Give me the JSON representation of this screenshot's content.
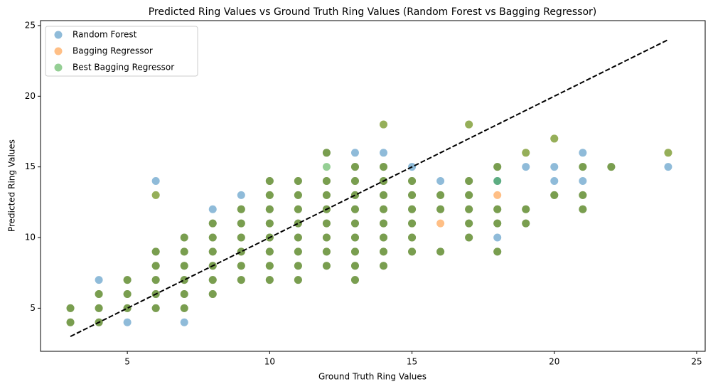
{
  "chart_data": {
    "type": "scatter",
    "title": "Predicted Ring Values vs Ground Truth Ring Values (Random Forest vs Bagging Regressor)",
    "x_label": "Ground Truth Ring Values",
    "y_label": "Predicted Ring Values",
    "xlim": [
      1.95,
      25.3
    ],
    "ylim": [
      1.95,
      25.35
    ],
    "xticks": [
      5,
      10,
      15,
      20,
      25
    ],
    "yticks": [
      5,
      10,
      15,
      20,
      25
    ],
    "grid": false,
    "legend": "upper-left",
    "series": [
      {
        "name": "Random Forest",
        "color": "#1f77b4",
        "x": [
          3,
          3,
          4,
          4,
          4,
          5,
          5,
          5,
          6,
          6,
          6,
          6,
          6,
          7,
          7,
          7,
          7,
          7,
          7,
          8,
          8,
          8,
          8,
          8,
          8,
          9,
          9,
          9,
          9,
          9,
          9,
          10,
          10,
          10,
          10,
          10,
          10,
          10,
          10,
          11,
          11,
          11,
          11,
          11,
          11,
          11,
          11,
          12,
          12,
          12,
          12,
          12,
          12,
          12,
          12,
          13,
          13,
          13,
          13,
          13,
          13,
          13,
          13,
          13,
          14,
          14,
          14,
          14,
          14,
          14,
          14,
          14,
          15,
          15,
          15,
          15,
          15,
          15,
          16,
          16,
          16,
          17,
          17,
          17,
          17,
          17,
          18,
          18,
          18,
          18,
          19,
          19,
          20,
          21,
          21,
          21,
          22,
          4,
          5,
          6,
          7,
          8,
          9,
          13,
          14,
          15,
          16,
          18,
          19,
          20,
          20,
          21,
          21,
          24,
          18
        ],
        "values": [
          4,
          5,
          4,
          5,
          6,
          5,
          6,
          7,
          5,
          6,
          7,
          8,
          9,
          5,
          6,
          7,
          8,
          9,
          10,
          6,
          7,
          8,
          9,
          10,
          11,
          7,
          8,
          9,
          10,
          11,
          12,
          7,
          8,
          9,
          10,
          11,
          12,
          13,
          14,
          7,
          8,
          9,
          10,
          11,
          12,
          13,
          14,
          8,
          9,
          10,
          11,
          12,
          13,
          14,
          16,
          7,
          8,
          9,
          10,
          11,
          12,
          13,
          14,
          15,
          8,
          9,
          10,
          11,
          12,
          13,
          14,
          15,
          9,
          10,
          11,
          12,
          13,
          14,
          9,
          12,
          13,
          10,
          11,
          12,
          13,
          14,
          9,
          11,
          12,
          15,
          11,
          12,
          13,
          12,
          13,
          15,
          15,
          7,
          4,
          14,
          4,
          12,
          13,
          16,
          16,
          15,
          14,
          10,
          15,
          14,
          15,
          14,
          16,
          15,
          14
        ]
      },
      {
        "name": "Bagging Regressor",
        "color": "#ff7f0e",
        "x": [
          3,
          3,
          4,
          4,
          4,
          5,
          5,
          5,
          6,
          6,
          6,
          6,
          6,
          7,
          7,
          7,
          7,
          7,
          7,
          8,
          8,
          8,
          8,
          8,
          8,
          9,
          9,
          9,
          9,
          9,
          9,
          10,
          10,
          10,
          10,
          10,
          10,
          10,
          10,
          11,
          11,
          11,
          11,
          11,
          11,
          11,
          11,
          12,
          12,
          12,
          12,
          12,
          12,
          12,
          12,
          13,
          13,
          13,
          13,
          13,
          13,
          13,
          13,
          13,
          14,
          14,
          14,
          14,
          14,
          14,
          14,
          14,
          15,
          15,
          15,
          15,
          15,
          15,
          16,
          16,
          16,
          17,
          17,
          17,
          17,
          17,
          18,
          18,
          18,
          18,
          19,
          19,
          20,
          21,
          21,
          21,
          22,
          6,
          14,
          17,
          19,
          20,
          24,
          16,
          18
        ],
        "values": [
          4,
          5,
          4,
          5,
          6,
          5,
          6,
          7,
          5,
          6,
          7,
          8,
          9,
          5,
          6,
          7,
          8,
          9,
          10,
          6,
          7,
          8,
          9,
          10,
          11,
          7,
          8,
          9,
          10,
          11,
          12,
          7,
          8,
          9,
          10,
          11,
          12,
          13,
          14,
          7,
          8,
          9,
          10,
          11,
          12,
          13,
          14,
          8,
          9,
          10,
          11,
          12,
          13,
          14,
          16,
          7,
          8,
          9,
          10,
          11,
          12,
          13,
          14,
          15,
          8,
          9,
          10,
          11,
          12,
          13,
          14,
          15,
          9,
          10,
          11,
          12,
          13,
          14,
          9,
          12,
          13,
          10,
          11,
          12,
          13,
          14,
          9,
          11,
          12,
          15,
          11,
          12,
          13,
          12,
          13,
          15,
          15,
          13,
          18,
          18,
          16,
          17,
          16,
          11,
          13
        ]
      },
      {
        "name": "Best Bagging Regressor",
        "color": "#2ca02c",
        "x": [
          3,
          3,
          4,
          4,
          4,
          5,
          5,
          5,
          6,
          6,
          6,
          6,
          6,
          7,
          7,
          7,
          7,
          7,
          7,
          8,
          8,
          8,
          8,
          8,
          8,
          9,
          9,
          9,
          9,
          9,
          9,
          10,
          10,
          10,
          10,
          10,
          10,
          10,
          10,
          11,
          11,
          11,
          11,
          11,
          11,
          11,
          11,
          12,
          12,
          12,
          12,
          12,
          12,
          12,
          12,
          13,
          13,
          13,
          13,
          13,
          13,
          13,
          13,
          13,
          14,
          14,
          14,
          14,
          14,
          14,
          14,
          14,
          15,
          15,
          15,
          15,
          15,
          15,
          16,
          16,
          16,
          17,
          17,
          17,
          17,
          17,
          18,
          18,
          18,
          18,
          19,
          19,
          20,
          21,
          21,
          21,
          22,
          6,
          14,
          17,
          19,
          20,
          24,
          12,
          18
        ],
        "values": [
          4,
          5,
          4,
          5,
          6,
          5,
          6,
          7,
          5,
          6,
          7,
          8,
          9,
          5,
          6,
          7,
          8,
          9,
          10,
          6,
          7,
          8,
          9,
          10,
          11,
          7,
          8,
          9,
          10,
          11,
          12,
          7,
          8,
          9,
          10,
          11,
          12,
          13,
          14,
          7,
          8,
          9,
          10,
          11,
          12,
          13,
          14,
          8,
          9,
          10,
          11,
          12,
          13,
          14,
          16,
          7,
          8,
          9,
          10,
          11,
          12,
          13,
          14,
          15,
          8,
          9,
          10,
          11,
          12,
          13,
          14,
          15,
          9,
          10,
          11,
          12,
          13,
          14,
          9,
          12,
          13,
          10,
          11,
          12,
          13,
          14,
          9,
          11,
          12,
          15,
          11,
          12,
          13,
          12,
          13,
          15,
          15,
          13,
          18,
          18,
          16,
          17,
          16,
          15,
          14
        ]
      }
    ],
    "reference_line": {
      "x": [
        3,
        24
      ],
      "values": [
        3,
        24
      ],
      "color": "#000000",
      "dashed": true
    }
  }
}
